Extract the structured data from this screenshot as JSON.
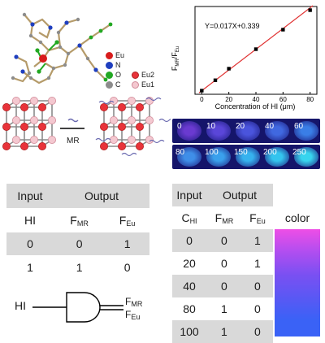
{
  "crystal_legend": {
    "items": [
      {
        "label": "Eu",
        "color": "#d81c1c"
      },
      {
        "label": "N",
        "color": "#1f3fbf"
      },
      {
        "label": "O",
        "color": "#22a822"
      },
      {
        "label": "C",
        "color": "#8c8c8c"
      }
    ]
  },
  "framework_legend": {
    "items": [
      {
        "label": "Eu2",
        "color": "#e8333a"
      },
      {
        "label": "Eu1",
        "color": "#f4c8d0"
      }
    ]
  },
  "framework_arrow_label": "MR",
  "chart_data": {
    "type": "scatter",
    "equation": "Y=0.017X+0.339",
    "xlabel": "Concentration of HI (μm)",
    "ylabel": "F_MR/F_Eu",
    "xlim": [
      -5,
      85
    ],
    "ylim": [
      0.28,
      1.72
    ],
    "xticks": [
      "0",
      "20",
      "40",
      "60",
      "80"
    ],
    "points": [
      {
        "x": 0,
        "y": 0.34
      },
      {
        "x": 10,
        "y": 0.51
      },
      {
        "x": 20,
        "y": 0.7
      },
      {
        "x": 40,
        "y": 1.02
      },
      {
        "x": 60,
        "y": 1.34
      },
      {
        "x": 80,
        "y": 1.66
      }
    ],
    "fit_line": {
      "slope": 0.017,
      "intercept": 0.339,
      "color": "#e03030"
    }
  },
  "photo_strips": [
    {
      "labels": [
        "0",
        "10",
        "20",
        "40",
        "60"
      ],
      "colors": [
        "#6a3ad0",
        "#5a46d8",
        "#4a54dc",
        "#4068e0",
        "#3a7ee6"
      ]
    },
    {
      "labels": [
        "80",
        "100",
        "150",
        "200",
        "250"
      ],
      "colors": [
        "#3f8ee8",
        "#3aa0ec",
        "#36b2ee",
        "#34c4ee",
        "#38d4ee"
      ]
    }
  ],
  "table_left": {
    "header": {
      "input": "Input",
      "output": "Output"
    },
    "columns": [
      "HI",
      "F",
      "F"
    ],
    "column_subs": [
      "",
      "MR",
      "Eu"
    ],
    "rows": [
      [
        "0",
        "0",
        "1"
      ],
      [
        "1",
        "1",
        "0"
      ]
    ]
  },
  "table_right": {
    "header": {
      "input": "Input",
      "output": "Output"
    },
    "columns": [
      "C",
      "F",
      "F",
      "color"
    ],
    "column_subs": [
      "HI",
      "MR",
      "Eu",
      ""
    ],
    "rows": [
      [
        "0",
        "0",
        "1"
      ],
      [
        "20",
        "0",
        "1"
      ],
      [
        "40",
        "0",
        "0"
      ],
      [
        "80",
        "1",
        "0"
      ],
      [
        "100",
        "1",
        "0"
      ]
    ],
    "swatches": [
      "#ee4ee6",
      "#b04ef0",
      "#7a50f2",
      "#5a58f4",
      "#3a62f6"
    ]
  },
  "logic_gate": {
    "input": "HI",
    "output_top": "F",
    "output_top_sub": "MR",
    "output_bottom": "F",
    "output_bottom_sub": "Eu"
  }
}
